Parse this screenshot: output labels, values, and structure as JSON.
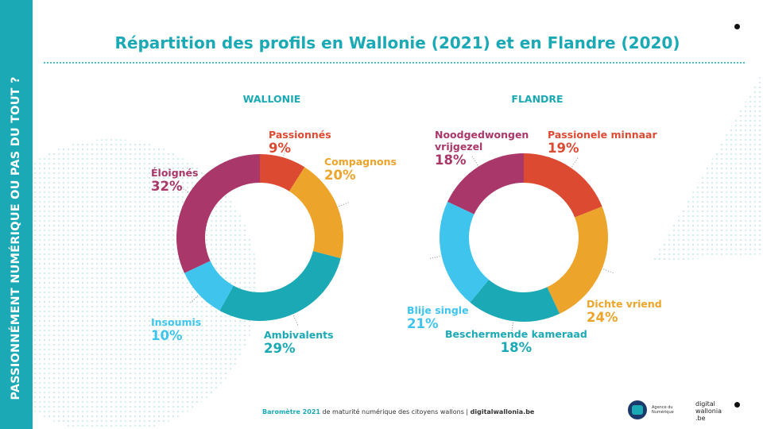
{
  "side_title": "PASSIONNÉMENT NUMÉRIQUE OU PAS DU TOUT ?",
  "title": "Répartition des profils en Wallonie (2021) et en Flandre (2020)",
  "footer": {
    "part1": "Baromètre 2021",
    "part2": " de maturité numérique des citoyens wallons | ",
    "part3": "digitalwallonia.be"
  },
  "logos": {
    "agence": "Agence du Numérique",
    "digital_wallonia": "digital wallonia .be"
  },
  "colors": {
    "accent": "#1aa9b5",
    "red": "#dc4a32",
    "orange": "#eca42a",
    "teal": "#1aa9b5",
    "sky": "#3fc4ee",
    "plum": "#a9376a"
  },
  "chart_data": [
    {
      "type": "pie",
      "donut": true,
      "title": "WALLONIE",
      "slices": [
        {
          "label": "Passionnés",
          "value": 9,
          "display": "9%",
          "color": "#dc4a32"
        },
        {
          "label": "Compagnons",
          "value": 20,
          "display": "20%",
          "color": "#eca42a"
        },
        {
          "label": "Ambivalents",
          "value": 29,
          "display": "29%",
          "color": "#1aa9b5"
        },
        {
          "label": "Insoumis",
          "value": 10,
          "display": "10%",
          "color": "#3fc4ee"
        },
        {
          "label": "Éloignés",
          "value": 32,
          "display": "32%",
          "color": "#a9376a"
        }
      ]
    },
    {
      "type": "pie",
      "donut": true,
      "title": "FLANDRE",
      "slices": [
        {
          "label": "Passionele minnaar",
          "value": 19,
          "display": "19%",
          "color": "#dc4a32"
        },
        {
          "label": "Dichte vriend",
          "value": 24,
          "display": "24%",
          "color": "#eca42a"
        },
        {
          "label": "Beschermende kameraad",
          "value": 18,
          "display": "18%",
          "color": "#1aa9b5"
        },
        {
          "label": "Blije single",
          "value": 21,
          "display": "21%",
          "color": "#3fc4ee"
        },
        {
          "label": "Noodgedwongen vrijgezel",
          "value": 18,
          "display": "18%",
          "color": "#a9376a"
        }
      ]
    }
  ]
}
